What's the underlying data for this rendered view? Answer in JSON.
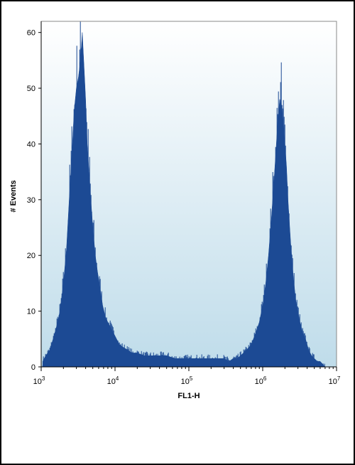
{
  "chart_data": {
    "type": "area",
    "xlabel": "FL1-H",
    "ylabel": "# Events",
    "x_scale": "log",
    "xlim": [
      1000,
      10000000
    ],
    "ylim": [
      0,
      62
    ],
    "x_ticks": [
      {
        "value": 1000,
        "base": "10",
        "exp": "3"
      },
      {
        "value": 10000,
        "base": "10",
        "exp": "4"
      },
      {
        "value": 100000,
        "base": "10",
        "exp": "5"
      },
      {
        "value": 1000000,
        "base": "10",
        "exp": "6"
      },
      {
        "value": 10000000,
        "base": "10",
        "exp": "7"
      }
    ],
    "y_ticks": [
      0,
      10,
      20,
      30,
      40,
      50,
      60
    ],
    "colors": {
      "fill": "#1c4a94",
      "plot_top": "#ffffff",
      "plot_bottom": "#bfdcea",
      "axis": "#000000"
    },
    "series": [
      {
        "x": [
          1050,
          1150,
          1300,
          1450,
          1600,
          1800,
          2000,
          2200,
          2400,
          2600,
          2800,
          3000,
          3200,
          3400,
          3600,
          3800,
          4000,
          4200,
          4400,
          4700,
          5000,
          5400,
          5800,
          6300,
          6800,
          7400,
          8000,
          8800,
          9600,
          10500,
          11500,
          13000,
          15000,
          17000,
          20000,
          25000,
          30000,
          40000,
          50000,
          65000,
          80000,
          100000,
          130000,
          160000,
          200000,
          250000,
          300000,
          350000,
          400000,
          450000,
          500000,
          600000,
          700000,
          800000,
          900000,
          1000000,
          1100000,
          1200000,
          1300000,
          1400000,
          1500000,
          1600000,
          1700000,
          1800000,
          1900000,
          2000000,
          2100000,
          2200000,
          2400000,
          2600000,
          2800000,
          3000000,
          3200000,
          3500000,
          3800000,
          4200000,
          4600000,
          5000000,
          5500000,
          6000000,
          6500000,
          7000000
        ],
        "values": [
          1,
          2,
          3,
          5,
          7,
          10,
          15,
          21,
          30,
          38,
          46,
          50,
          52,
          55,
          60,
          54,
          48,
          40,
          36,
          30,
          25,
          20,
          17,
          14,
          11,
          9,
          8,
          7,
          6,
          5,
          4,
          3.5,
          3,
          2.5,
          2.5,
          2,
          2,
          2,
          2,
          1.5,
          1.5,
          1.5,
          1.5,
          1.5,
          1.5,
          1.5,
          1.5,
          1,
          1.5,
          1.5,
          2,
          3,
          4,
          6,
          8,
          11,
          15,
          20,
          26,
          32,
          38,
          44,
          48,
          47,
          44,
          40,
          36,
          30,
          22,
          16,
          12,
          10,
          8,
          6,
          5,
          3,
          2,
          1.5,
          1,
          1,
          0.5,
          0
        ]
      }
    ]
  }
}
